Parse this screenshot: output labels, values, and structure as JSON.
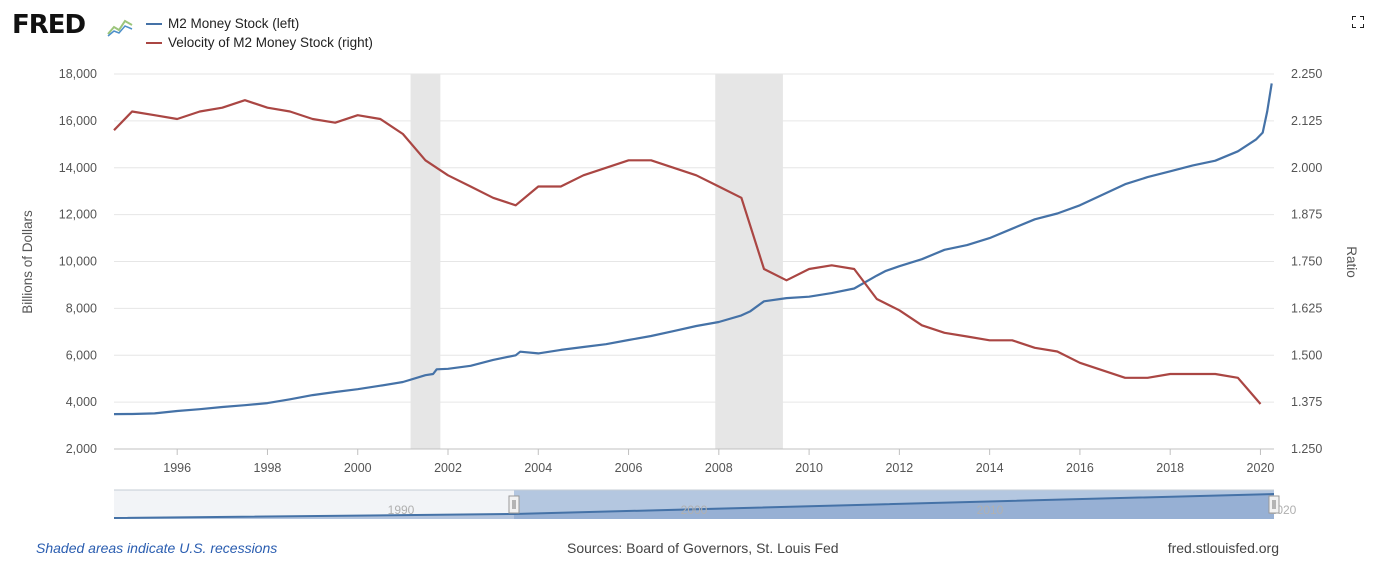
{
  "header": {
    "logo_text": "FRED",
    "legend": [
      {
        "label": "M2 Money Stock (left)",
        "color": "#4572a7"
      },
      {
        "label": "Velocity of M2 Money Stock (right)",
        "color": "#aa4643"
      }
    ]
  },
  "footer": {
    "note": "Shaded areas indicate U.S. recessions",
    "sources": "Sources: Board of Governors, St. Louis Fed",
    "url": "fred.stlouisfed.org"
  },
  "chart_data": {
    "type": "line",
    "title": "",
    "xlabel": "",
    "ylabel_left": "Billions of Dollars",
    "ylabel_right": "Ratio",
    "xlim": [
      1994.6,
      2020.3
    ],
    "ylim_left": [
      2000,
      18000
    ],
    "ylim_right": [
      1.25,
      2.25
    ],
    "x_ticks": [
      "1996",
      "1998",
      "2000",
      "2002",
      "2004",
      "2006",
      "2008",
      "2010",
      "2012",
      "2014",
      "2016",
      "2018",
      "2020"
    ],
    "y_ticks_left": [
      "2,000",
      "4,000",
      "6,000",
      "8,000",
      "10,000",
      "12,000",
      "14,000",
      "16,000",
      "18,000"
    ],
    "y_ticks_right": [
      "1.250",
      "1.375",
      "1.500",
      "1.625",
      "1.750",
      "1.875",
      "2.000",
      "2.125",
      "2.250"
    ],
    "grid": true,
    "recessions": [
      [
        2001.17,
        2001.83
      ],
      [
        2007.92,
        2009.42
      ]
    ],
    "series": [
      {
        "name": "M2 Money Stock (left)",
        "axis": "left",
        "color": "#4572a7",
        "x": [
          1994.6,
          1995.0,
          1995.5,
          1996.0,
          1996.5,
          1997.0,
          1997.5,
          1998.0,
          1998.5,
          1999.0,
          1999.5,
          2000.0,
          2000.5,
          2001.0,
          2001.5,
          2001.67,
          2001.75,
          2002.0,
          2002.5,
          2003.0,
          2003.5,
          2003.6,
          2004.0,
          2004.5,
          2005.0,
          2005.5,
          2006.0,
          2006.5,
          2007.0,
          2007.5,
          2008.0,
          2008.5,
          2008.7,
          2009.0,
          2009.5,
          2010.0,
          2010.5,
          2011.0,
          2011.5,
          2011.7,
          2012.0,
          2012.5,
          2013.0,
          2013.5,
          2014.0,
          2014.5,
          2015.0,
          2015.5,
          2016.0,
          2016.5,
          2017.0,
          2017.5,
          2018.0,
          2018.5,
          2019.0,
          2019.5,
          2019.9,
          2020.05,
          2020.15,
          2020.25
        ],
        "values": [
          3490,
          3495,
          3520,
          3620,
          3700,
          3790,
          3870,
          3960,
          4120,
          4300,
          4430,
          4550,
          4700,
          4860,
          5150,
          5200,
          5400,
          5420,
          5550,
          5800,
          6000,
          6150,
          6080,
          6230,
          6350,
          6470,
          6650,
          6820,
          7030,
          7250,
          7420,
          7700,
          7880,
          8300,
          8440,
          8500,
          8650,
          8850,
          9400,
          9600,
          9800,
          10100,
          10500,
          10700,
          11000,
          11400,
          11800,
          12050,
          12400,
          12850,
          13300,
          13600,
          13850,
          14100,
          14300,
          14700,
          15200,
          15500,
          16400,
          17600
        ]
      },
      {
        "name": "Velocity of M2 Money Stock (right)",
        "axis": "right",
        "color": "#aa4643",
        "x": [
          1994.6,
          1995.0,
          1995.5,
          1996.0,
          1996.5,
          1997.0,
          1997.5,
          1998.0,
          1998.5,
          1999.0,
          1999.5,
          2000.0,
          2000.5,
          2001.0,
          2001.5,
          2002.0,
          2002.5,
          2003.0,
          2003.5,
          2004.0,
          2004.5,
          2005.0,
          2005.5,
          2006.0,
          2006.5,
          2007.0,
          2007.5,
          2008.0,
          2008.5,
          2009.0,
          2009.5,
          2010.0,
          2010.5,
          2011.0,
          2011.5,
          2012.0,
          2012.5,
          2013.0,
          2013.5,
          2014.0,
          2014.5,
          2015.0,
          2015.5,
          2016.0,
          2016.5,
          2017.0,
          2017.5,
          2018.0,
          2018.5,
          2019.0,
          2019.5,
          2020.0
        ],
        "values": [
          2.1,
          2.15,
          2.14,
          2.13,
          2.15,
          2.16,
          2.18,
          2.16,
          2.15,
          2.13,
          2.12,
          2.14,
          2.13,
          2.09,
          2.02,
          1.98,
          1.95,
          1.92,
          1.9,
          1.95,
          1.95,
          1.98,
          2.0,
          2.02,
          2.02,
          2.0,
          1.98,
          1.95,
          1.92,
          1.73,
          1.7,
          1.73,
          1.74,
          1.73,
          1.65,
          1.62,
          1.58,
          1.56,
          1.55,
          1.54,
          1.54,
          1.52,
          1.51,
          1.48,
          1.46,
          1.44,
          1.44,
          1.45,
          1.45,
          1.45,
          1.44,
          1.37
        ]
      }
    ]
  },
  "navigator": {
    "labels": [
      "1990",
      "2000",
      "2010",
      "2020"
    ]
  }
}
